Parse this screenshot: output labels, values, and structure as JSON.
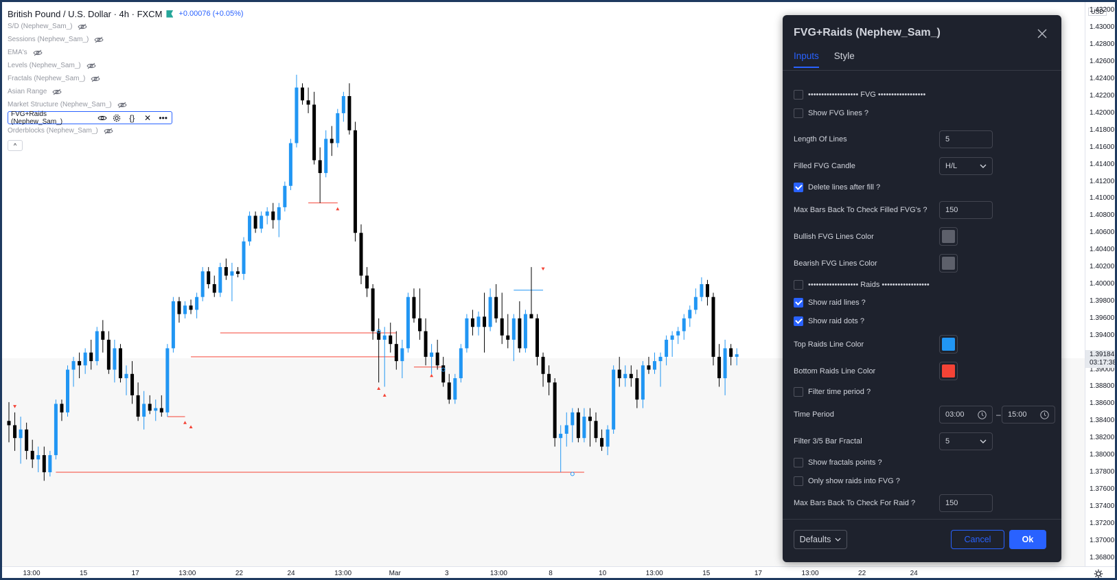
{
  "legend": {
    "symbol": "British Pound / U.S. Dollar · 4h · FXCM",
    "change": "+0.00076 (+0.05%)",
    "indicators": [
      "S/D (Nephew_Sam_)",
      "Sessions (Nephew_Sam_)",
      "EMA's",
      "Levels (Nephew_Sam_)",
      "Fractals (Nephew_Sam_)",
      "Asian Range",
      "Market Structure (Nephew_Sam_)",
      "FVG+Raids (Nephew_Sam_)",
      "Orderblocks (Nephew_Sam_)"
    ],
    "active_indicator_index": 7,
    "active_ctrl_code": "{}",
    "active_ctrl_close": "✕",
    "active_ctrl_more": "•••",
    "collapse": "^"
  },
  "price_axis": {
    "currency": "USD",
    "ticks": [
      "1.43200",
      "1.43000",
      "1.42800",
      "1.42600",
      "1.42400",
      "1.42200",
      "1.42000",
      "1.41800",
      "1.41600",
      "1.41400",
      "1.41200",
      "1.41000",
      "1.40800",
      "1.40600",
      "1.40400",
      "1.40200",
      "1.40000",
      "1.39800",
      "1.39600",
      "1.39400",
      "1.39000",
      "1.38800",
      "1.38600",
      "1.38400",
      "1.38200",
      "1.38000",
      "1.37800",
      "1.37600",
      "1.37400",
      "1.37200",
      "1.37000",
      "1.36800"
    ],
    "current_price": "1.39184",
    "countdown": "03:17:38"
  },
  "time_axis": {
    "ticks": [
      "13:00",
      "15",
      "17",
      "13:00",
      "22",
      "24",
      "13:00",
      "Mar",
      "3",
      "13:00",
      "8",
      "10",
      "13:00",
      "15",
      "17",
      "13:00",
      "22",
      "24"
    ]
  },
  "dialog": {
    "title": "FVG+Raids (Nephew_Sam_)",
    "tabs": [
      "Inputs",
      "Style"
    ],
    "fvg_header": "••••••••••••••••••• FVG ••••••••••••••••••",
    "show_fvg_lines": "Show FVG lines ?",
    "length_of_lines_label": "Length Of Lines",
    "length_of_lines_value": "5",
    "filled_fvg_candle_label": "Filled FVG Candle",
    "filled_fvg_candle_value": "H/L",
    "delete_lines_after_fill": "Delete lines after fill ?",
    "max_bars_filled_label": "Max Bars Back To Check Filled FVG's ?",
    "max_bars_filled_value": "150",
    "bullish_color_label": "Bullish FVG Lines Color",
    "bearish_color_label": "Bearish FVG Lines Color",
    "raids_header": "••••••••••••••••••• Raids ••••••••••••••••••",
    "show_raid_lines": "Show raid lines ?",
    "show_raid_dots": "Show raid dots ?",
    "top_raids_color_label": "Top Raids Line Color",
    "bottom_raids_color_label": "Bottom Raids Line Color",
    "filter_time_period": "Filter time period ?",
    "time_period_label": "Time Period",
    "time_start": "03:00",
    "time_dash": "–",
    "time_end": "15:00",
    "filter_fractal_label": "Filter 3/5 Bar Fractal",
    "filter_fractal_value": "5",
    "show_fractals_points": "Show fractals points ?",
    "only_raids_into_fvg": "Only show raids into FVG ?",
    "max_bars_raid_label": "Max Bars Back To Check For Raid ?",
    "max_bars_raid_value": "150",
    "defaults_label": "Defaults",
    "cancel_label": "Cancel",
    "ok_label": "Ok",
    "checked": {
      "fvg_header": false,
      "show_fvg_lines": false,
      "delete_lines_after_fill": true,
      "raids_header": false,
      "show_raid_lines": true,
      "show_raid_dots": true,
      "filter_time_period": false,
      "show_fractals_points": false,
      "only_raids_into_fvg": false
    },
    "colors": {
      "bullish": "#5d606b",
      "bearish": "#5d606b",
      "top_raids": "#2196f3",
      "bottom_raids": "#f44336",
      "accent": "#2962ff"
    }
  },
  "chart_data": {
    "type": "candlestick",
    "title": "British Pound / U.S. Dollar · 4h · FXCM",
    "up_color": "#2196f3",
    "down_color": "#000000",
    "ylim": [
      1.367,
      1.433
    ],
    "candles": [
      [
        1.384,
        1.3862,
        1.3815,
        1.3835
      ],
      [
        1.3835,
        1.385,
        1.3805,
        1.382
      ],
      [
        1.382,
        1.3845,
        1.379,
        1.383
      ],
      [
        1.383,
        1.3838,
        1.3795,
        1.3805
      ],
      [
        1.3805,
        1.3818,
        1.3785,
        1.3795
      ],
      [
        1.3795,
        1.381,
        1.378,
        1.38
      ],
      [
        1.38,
        1.381,
        1.377,
        1.378
      ],
      [
        1.378,
        1.3805,
        1.3775,
        1.38
      ],
      [
        1.38,
        1.3865,
        1.3795,
        1.386
      ],
      [
        1.386,
        1.3865,
        1.384,
        1.385
      ],
      [
        1.385,
        1.3905,
        1.3845,
        1.39
      ],
      [
        1.39,
        1.3915,
        1.388,
        1.391
      ],
      [
        1.391,
        1.392,
        1.389,
        1.3905
      ],
      [
        1.3905,
        1.3925,
        1.3895,
        1.392
      ],
      [
        1.392,
        1.3935,
        1.39,
        1.391
      ],
      [
        1.391,
        1.395,
        1.3905,
        1.3945
      ],
      [
        1.3945,
        1.3958,
        1.392,
        1.3935
      ],
      [
        1.3935,
        1.3945,
        1.3895,
        1.39
      ],
      [
        1.39,
        1.3935,
        1.3885,
        1.3925
      ],
      [
        1.3925,
        1.393,
        1.3885,
        1.389
      ],
      [
        1.389,
        1.3905,
        1.387,
        1.3895
      ],
      [
        1.3895,
        1.391,
        1.386,
        1.387
      ],
      [
        1.387,
        1.3885,
        1.384,
        1.3845
      ],
      [
        1.3845,
        1.3875,
        1.383,
        1.386
      ],
      [
        1.386,
        1.387,
        1.3848,
        1.3852
      ],
      [
        1.3852,
        1.3865,
        1.384,
        1.3855
      ],
      [
        1.3855,
        1.387,
        1.3845,
        1.385
      ],
      [
        1.385,
        1.393,
        1.3845,
        1.3925
      ],
      [
        1.3925,
        1.3985,
        1.392,
        1.398
      ],
      [
        1.398,
        1.3985,
        1.3955,
        1.3965
      ],
      [
        1.3965,
        1.398,
        1.396,
        1.3975
      ],
      [
        1.3975,
        1.3982,
        1.3965,
        1.397
      ],
      [
        1.397,
        1.399,
        1.396,
        1.3985
      ],
      [
        1.3985,
        1.402,
        1.398,
        1.4015
      ],
      [
        1.4015,
        1.402,
        1.3995,
        1.4
      ],
      [
        1.4,
        1.401,
        1.3985,
        1.399
      ],
      [
        1.399,
        1.4025,
        1.3985,
        1.402
      ],
      [
        1.402,
        1.403,
        1.4005,
        1.401
      ],
      [
        1.401,
        1.4025,
        1.398,
        1.4015
      ],
      [
        1.4015,
        1.402,
        1.4008,
        1.4012
      ],
      [
        1.4012,
        1.4055,
        1.4005,
        1.405
      ],
      [
        1.405,
        1.4085,
        1.4045,
        1.408
      ],
      [
        1.408,
        1.4085,
        1.406,
        1.4065
      ],
      [
        1.4065,
        1.4085,
        1.406,
        1.408
      ],
      [
        1.408,
        1.409,
        1.407,
        1.4085
      ],
      [
        1.4085,
        1.4095,
        1.4065,
        1.4075
      ],
      [
        1.4075,
        1.4095,
        1.4055,
        1.409
      ],
      [
        1.409,
        1.412,
        1.4085,
        1.4115
      ],
      [
        1.4115,
        1.417,
        1.411,
        1.4165
      ],
      [
        1.4165,
        1.4245,
        1.416,
        1.423
      ],
      [
        1.423,
        1.4235,
        1.421,
        1.4215
      ],
      [
        1.4215,
        1.423,
        1.42,
        1.421
      ],
      [
        1.421,
        1.4225,
        1.414,
        1.4145
      ],
      [
        1.4145,
        1.416,
        1.4095,
        1.413
      ],
      [
        1.413,
        1.418,
        1.4125,
        1.417
      ],
      [
        1.417,
        1.4185,
        1.415,
        1.4165
      ],
      [
        1.4165,
        1.4205,
        1.416,
        1.42
      ],
      [
        1.42,
        1.4225,
        1.419,
        1.422
      ],
      [
        1.422,
        1.4235,
        1.4175,
        1.418
      ],
      [
        1.418,
        1.419,
        1.405,
        1.406
      ],
      [
        1.406,
        1.407,
        1.4,
        1.401
      ],
      [
        1.401,
        1.402,
        1.3985,
        1.3995
      ],
      [
        1.3995,
        1.4,
        1.3935,
        1.3945
      ],
      [
        1.3945,
        1.396,
        1.3885,
        1.3935
      ],
      [
        1.3935,
        1.395,
        1.388,
        1.394
      ],
      [
        1.394,
        1.3955,
        1.392,
        1.393
      ],
      [
        1.393,
        1.3945,
        1.39,
        1.391
      ],
      [
        1.391,
        1.3935,
        1.389,
        1.3925
      ],
      [
        1.3925,
        1.399,
        1.392,
        1.3985
      ],
      [
        1.3985,
        1.3995,
        1.3955,
        1.396
      ],
      [
        1.396,
        1.3995,
        1.3935,
        1.3945
      ],
      [
        1.3945,
        1.396,
        1.3905,
        1.3915
      ],
      [
        1.3915,
        1.393,
        1.3895,
        1.392
      ],
      [
        1.392,
        1.3935,
        1.39,
        1.3905
      ],
      [
        1.3905,
        1.3915,
        1.388,
        1.3885
      ],
      [
        1.3885,
        1.3895,
        1.386,
        1.3865
      ],
      [
        1.3865,
        1.3895,
        1.386,
        1.389
      ],
      [
        1.389,
        1.393,
        1.3885,
        1.3925
      ],
      [
        1.3925,
        1.3965,
        1.392,
        1.396
      ],
      [
        1.396,
        1.397,
        1.394,
        1.395
      ],
      [
        1.395,
        1.3968,
        1.394,
        1.3962
      ],
      [
        1.3962,
        1.399,
        1.392,
        1.395
      ],
      [
        1.395,
        1.3995,
        1.3945,
        1.3985
      ],
      [
        1.3985,
        1.4,
        1.3955,
        1.396
      ],
      [
        1.396,
        1.399,
        1.393,
        1.394
      ],
      [
        1.394,
        1.3965,
        1.3925,
        1.3935
      ],
      [
        1.3935,
        1.3965,
        1.391,
        1.396
      ],
      [
        1.396,
        1.398,
        1.392,
        1.3925
      ],
      [
        1.3925,
        1.397,
        1.392,
        1.3965
      ],
      [
        1.3965,
        1.402,
        1.396,
        1.396
      ],
      [
        1.396,
        1.3965,
        1.3905,
        1.3915
      ],
      [
        1.3915,
        1.392,
        1.388,
        1.3895
      ],
      [
        1.3895,
        1.3905,
        1.387,
        1.3885
      ],
      [
        1.3885,
        1.389,
        1.381,
        1.382
      ],
      [
        1.382,
        1.3835,
        1.378,
        1.3825
      ],
      [
        1.3825,
        1.385,
        1.381,
        1.3835
      ],
      [
        1.3835,
        1.3855,
        1.3815,
        1.385
      ],
      [
        1.385,
        1.3855,
        1.3815,
        1.382
      ],
      [
        1.382,
        1.3855,
        1.3815,
        1.3845
      ],
      [
        1.3845,
        1.3855,
        1.381,
        1.384
      ],
      [
        1.384,
        1.385,
        1.3815,
        1.382
      ],
      [
        1.382,
        1.383,
        1.3805,
        1.381
      ],
      [
        1.381,
        1.3835,
        1.38,
        1.383
      ],
      [
        1.383,
        1.3905,
        1.3825,
        1.39
      ],
      [
        1.39,
        1.3915,
        1.388,
        1.389
      ],
      [
        1.389,
        1.3905,
        1.388,
        1.3895
      ],
      [
        1.3895,
        1.3905,
        1.388,
        1.389
      ],
      [
        1.389,
        1.39,
        1.3855,
        1.3865
      ],
      [
        1.3865,
        1.391,
        1.3855,
        1.3905
      ],
      [
        1.3905,
        1.3915,
        1.3895,
        1.39
      ],
      [
        1.39,
        1.392,
        1.3895,
        1.391
      ],
      [
        1.391,
        1.392,
        1.388,
        1.3915
      ],
      [
        1.3915,
        1.394,
        1.3905,
        1.3935
      ],
      [
        1.3935,
        1.3945,
        1.3915,
        1.394
      ],
      [
        1.394,
        1.395,
        1.393,
        1.3945
      ],
      [
        1.3945,
        1.3965,
        1.3935,
        1.396
      ],
      [
        1.396,
        1.3975,
        1.395,
        1.397
      ],
      [
        1.397,
        1.3995,
        1.3965,
        1.3985
      ],
      [
        1.3985,
        1.4008,
        1.398,
        1.4
      ],
      [
        1.4,
        1.4005,
        1.3975,
        1.3985
      ],
      [
        1.3985,
        1.399,
        1.3905,
        1.3915
      ],
      [
        1.3915,
        1.393,
        1.388,
        1.389
      ],
      [
        1.389,
        1.3935,
        1.387,
        1.3925
      ],
      [
        1.3925,
        1.393,
        1.3905,
        1.3915
      ],
      [
        1.3915,
        1.3925,
        1.3905,
        1.3918
      ]
    ],
    "raid_lines": [
      {
        "from": 1.378,
        "to": 1.378,
        "color": "#f44336"
      },
      {
        "from": 1.3915,
        "to": 1.3915,
        "color": "#f44336"
      },
      {
        "from": 1.3943,
        "to": 1.3943,
        "color": "#f44336"
      },
      {
        "from": 1.4095,
        "to": 1.4095,
        "color": "#f44336"
      },
      {
        "from": 1.3993,
        "to": 1.3993,
        "color": "#2196f3"
      },
      {
        "from": 1.3903,
        "to": 1.3903,
        "color": "#f44336"
      },
      {
        "from": 1.3845,
        "to": 1.3845,
        "color": "#f44336"
      }
    ]
  }
}
